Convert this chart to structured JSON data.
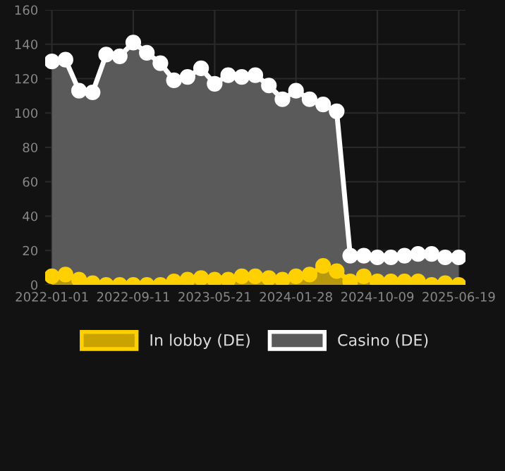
{
  "chart_data": {
    "type": "area",
    "categories": [
      "2022-01-01",
      null,
      null,
      null,
      null,
      null,
      "2022-09-11",
      null,
      null,
      null,
      null,
      null,
      "2023-05-21",
      null,
      null,
      null,
      null,
      null,
      "2024-01-28",
      null,
      null,
      null,
      null,
      null,
      "2024-10-09",
      null,
      null,
      null,
      null,
      null,
      "2025-06-19"
    ],
    "series": [
      {
        "name": "In lobby (DE)",
        "color": "#ffd000",
        "values": [
          5,
          6,
          3,
          1,
          0,
          0,
          0,
          0,
          0,
          2,
          3,
          4,
          3,
          3,
          5,
          5,
          4,
          3,
          5,
          6,
          11,
          8,
          2,
          5,
          2,
          2,
          2,
          2,
          0,
          1,
          0
        ]
      },
      {
        "name": "Casino (DE)",
        "color": "#ffffff",
        "values": [
          130,
          131,
          113,
          112,
          134,
          133,
          141,
          135,
          129,
          119,
          121,
          126,
          117,
          122,
          121,
          122,
          116,
          108,
          113,
          108,
          105,
          101,
          17,
          17,
          16,
          16,
          17,
          18,
          18,
          16,
          16
        ]
      }
    ],
    "ylim": [
      0,
      160
    ],
    "yticks": [
      0,
      20,
      40,
      60,
      80,
      100,
      120,
      140,
      160
    ],
    "grid": true,
    "legend": "bottom",
    "marker": "circle",
    "line_style": "solid"
  }
}
